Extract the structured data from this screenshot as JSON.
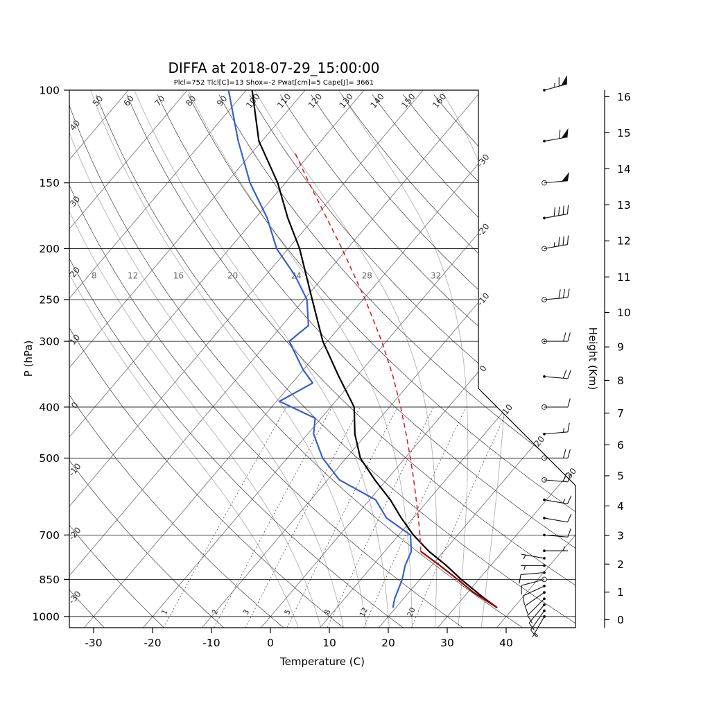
{
  "header": {
    "title": "DIFFA at 2018-07-29_15:00:00",
    "station": "DIFFA",
    "datetime": "2018-07-29_15:00:00",
    "stats": "Plcl=752 Tlcl[C]=13 Shox=-2 Pwat[cm]=5 Cape[J]= 3661",
    "indices": {
      "Plcl_hpa": 752,
      "Tlcl_C": 13,
      "Shox": -2,
      "Pwat_cm": 5,
      "Cape_J": 3661
    }
  },
  "axes": {
    "pressure_label": "P (hPa)",
    "pressure_ticks": [
      100,
      150,
      200,
      250,
      300,
      400,
      500,
      700,
      850,
      1000
    ],
    "temperature_label": "Temperature (C)",
    "temperature_ticks": [
      -30,
      -20,
      -10,
      0,
      10,
      20,
      30,
      40
    ],
    "height_label": "Height (Km)",
    "height_ticks_km": [
      0,
      1,
      2,
      3,
      4,
      5,
      6,
      7,
      8,
      9,
      10,
      11,
      12,
      13,
      14,
      15,
      16
    ]
  },
  "chart_data": {
    "type": "skewt-logp",
    "pressure_range_hpa": [
      100,
      1050
    ],
    "isotherms_drawn_c": [
      -120,
      -110,
      -100,
      -90,
      -80,
      -70,
      -60,
      -50,
      -40,
      -30,
      -20,
      -10,
      0,
      10,
      20,
      30,
      40
    ],
    "isotherm_labels_c": [
      -30,
      -20,
      -10,
      0,
      10,
      20,
      30
    ],
    "dry_adiabat_labels_c": [
      -30,
      -20,
      -10,
      0,
      10,
      20,
      30,
      40,
      50,
      60,
      70,
      80,
      90,
      100,
      110,
      120,
      130,
      140,
      150,
      160
    ],
    "moist_adiabats_drawn_c": [
      4,
      8,
      12,
      16,
      20,
      24,
      28,
      32,
      36
    ],
    "moist_adiabat_labels_c": [
      8,
      12,
      16,
      20,
      24,
      28,
      32
    ],
    "mixing_ratio_labels_gkg": [
      1,
      2,
      3,
      5,
      8,
      12,
      20
    ],
    "temperature_profile": {
      "pressure_hpa": [
        962,
        925,
        850,
        800,
        752,
        700,
        650,
        600,
        550,
        500,
        450,
        400,
        350,
        300,
        250,
        200,
        175,
        150,
        125,
        100
      ],
      "temp_c": [
        37.2,
        33.8,
        27.0,
        22.5,
        17.5,
        12.5,
        8.0,
        3.5,
        -2.0,
        -7.6,
        -12.0,
        -16.0,
        -23.0,
        -30.8,
        -38.6,
        -48.1,
        -54.5,
        -61.3,
        -70.5,
        -79.0
      ]
    },
    "dewpoint_profile": {
      "pressure_hpa": [
        962,
        925,
        850,
        800,
        752,
        700,
        650,
        600,
        550,
        500,
        450,
        420,
        390,
        360,
        340,
        300,
        280,
        250,
        225,
        200,
        175,
        150,
        125,
        100
      ],
      "dewpoint_c": [
        19.5,
        18.5,
        17.0,
        15.5,
        14.5,
        12.0,
        5.5,
        1.0,
        -8.0,
        -14.0,
        -19.0,
        -21.0,
        -29.5,
        -26.5,
        -30.0,
        -36.5,
        -35.5,
        -39.5,
        -45.0,
        -52.0,
        -58.0,
        -66.0,
        -74.0,
        -83.0
      ]
    },
    "parcel_path": {
      "lcl_hpa": 752,
      "pressure_hpa": [
        962,
        900,
        850,
        800,
        752,
        700,
        650,
        600,
        550,
        500,
        450,
        400,
        350,
        300,
        250,
        200,
        175,
        150,
        132
      ],
      "temp_c": [
        37.2,
        31.0,
        26.4,
        21.4,
        16.1,
        13.6,
        10.9,
        7.9,
        4.6,
        0.9,
        -3.3,
        -8.1,
        -13.8,
        -20.8,
        -29.6,
        -40.9,
        -47.9,
        -56.0,
        -62.5
      ]
    },
    "wind_barbs": [
      {
        "p": 1000,
        "dir": 210,
        "kt": 5,
        "m": "dot"
      },
      {
        "p": 975,
        "dir": 215,
        "kt": 8,
        "m": "dot"
      },
      {
        "p": 950,
        "dir": 220,
        "kt": 10,
        "m": "dot"
      },
      {
        "p": 925,
        "dir": 225,
        "kt": 10,
        "m": "dot"
      },
      {
        "p": 900,
        "dir": 235,
        "kt": 10,
        "m": "dot"
      },
      {
        "p": 875,
        "dir": 245,
        "kt": 8,
        "m": "dot"
      },
      {
        "p": 850,
        "dir": 255,
        "kt": 10,
        "m": "open"
      },
      {
        "p": 825,
        "dir": 265,
        "kt": 8,
        "m": "dot"
      },
      {
        "p": 800,
        "dir": 270,
        "kt": 6,
        "m": "dot"
      },
      {
        "p": 775,
        "dir": 280,
        "kt": 5,
        "m": "dot"
      },
      {
        "p": 750,
        "dir": 90,
        "kt": 5,
        "m": "dot"
      },
      {
        "p": 700,
        "dir": 95,
        "kt": 8,
        "m": "dot"
      },
      {
        "p": 650,
        "dir": 100,
        "kt": 12,
        "m": "dot"
      },
      {
        "p": 600,
        "dir": 100,
        "kt": 15,
        "m": "dot"
      },
      {
        "p": 550,
        "dir": 95,
        "kt": 18,
        "m": "open"
      },
      {
        "p": 500,
        "dir": 90,
        "kt": 20,
        "m": "open"
      },
      {
        "p": 450,
        "dir": 85,
        "kt": 15,
        "m": "dot"
      },
      {
        "p": 400,
        "dir": 90,
        "kt": 12,
        "m": "open"
      },
      {
        "p": 350,
        "dir": 95,
        "kt": 18,
        "m": "dot"
      },
      {
        "p": 300,
        "dir": 90,
        "kt": 22,
        "m": "double"
      },
      {
        "p": 250,
        "dir": 85,
        "kt": 28,
        "m": "open"
      },
      {
        "p": 200,
        "dir": 80,
        "kt": 35,
        "m": "open"
      },
      {
        "p": 175,
        "dir": 80,
        "kt": 42,
        "m": "dot"
      },
      {
        "p": 150,
        "dir": 85,
        "kt": 48,
        "m": "open"
      },
      {
        "p": 125,
        "dir": 80,
        "kt": 58,
        "m": "dot"
      },
      {
        "p": 100,
        "dir": 75,
        "kt": 65,
        "m": "dot"
      }
    ],
    "colors": {
      "temperature": "#000000",
      "dewpoint": "#3a5fc8",
      "parcel": "#e02020",
      "parcel_below_lcl": "#990000",
      "stats_text": "#cc5500",
      "isotherm": "#6e6e6e",
      "dry_adiabat": "#3c3c3c",
      "moist_adiabat": "#b2b2b2",
      "mixing_ratio": "#4a4a4a"
    }
  }
}
